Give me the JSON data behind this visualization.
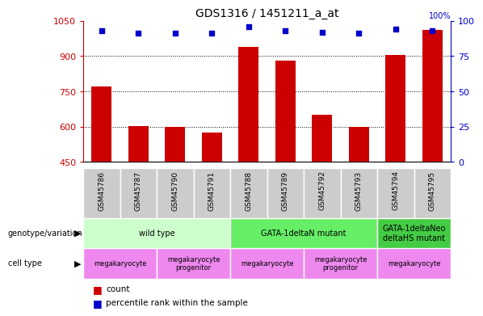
{
  "title": "GDS1316 / 1451211_a_at",
  "samples": [
    "GSM45786",
    "GSM45787",
    "GSM45790",
    "GSM45791",
    "GSM45788",
    "GSM45789",
    "GSM45792",
    "GSM45793",
    "GSM45794",
    "GSM45795"
  ],
  "counts": [
    770,
    603,
    600,
    575,
    940,
    880,
    650,
    600,
    905,
    1010
  ],
  "percentiles": [
    93,
    91,
    91,
    91,
    96,
    93,
    92,
    91,
    94,
    93
  ],
  "ylim_left": [
    450,
    1050
  ],
  "ylim_right": [
    0,
    100
  ],
  "yticks_left": [
    450,
    600,
    750,
    900,
    1050
  ],
  "yticks_right": [
    0,
    25,
    50,
    75,
    100
  ],
  "bar_color": "#cc0000",
  "dot_color": "#0000cc",
  "genotype_groups": [
    {
      "label": "wild type",
      "start": 0,
      "end": 4,
      "color": "#ccffcc"
    },
    {
      "label": "GATA-1deltaN mutant",
      "start": 4,
      "end": 8,
      "color": "#66ee66"
    },
    {
      "label": "GATA-1deltaNeo\ndeltaHS mutant",
      "start": 8,
      "end": 10,
      "color": "#44cc44"
    }
  ],
  "cell_type_groups": [
    {
      "label": "megakaryocyte",
      "start": 0,
      "end": 2
    },
    {
      "label": "megakaryocyte\nprogenitor",
      "start": 2,
      "end": 4
    },
    {
      "label": "megakaryocyte",
      "start": 4,
      "end": 6
    },
    {
      "label": "megakaryocyte\nprogenitor",
      "start": 6,
      "end": 8
    },
    {
      "label": "megakaryocyte",
      "start": 8,
      "end": 10
    }
  ],
  "cell_type_color": "#ee88ee",
  "left_label_color": "#cc0000",
  "right_tick_color": "#0000cc",
  "title_color": "#000000",
  "xlabel_bg": "#cccccc",
  "separator_color": "#ffffff"
}
